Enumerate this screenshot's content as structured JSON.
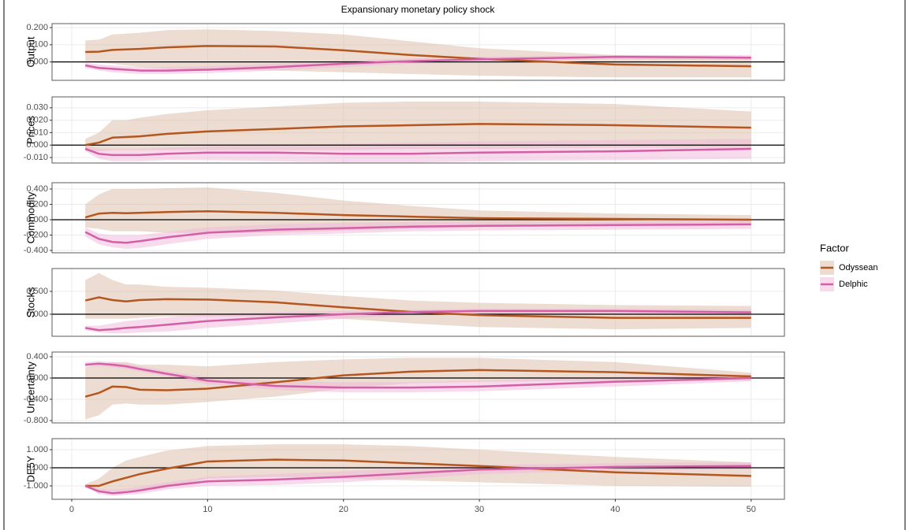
{
  "chart_data": [
    {
      "type": "line",
      "title": "Expansionary monetary policy shock",
      "y_label": "Output",
      "legend_title": "Factor",
      "legend_position": "right",
      "x": [
        1,
        2,
        3,
        4,
        5,
        7,
        10,
        15,
        20,
        25,
        30,
        40,
        50
      ],
      "ylim": [
        -0.107,
        0.223
      ],
      "yticks": [
        {
          "value": 0.2,
          "label": "0.200"
        },
        {
          "value": 0.1,
          "label": "0.100"
        },
        {
          "value": 0,
          "label": "0.000"
        }
      ],
      "series": [
        {
          "name": "Odyssean",
          "color": "#b5561e",
          "band_color": "#d9b9a3",
          "values": [
            0.058,
            0.06,
            0.07,
            0.073,
            0.076,
            0.085,
            0.093,
            0.09,
            0.068,
            0.04,
            0.018,
            -0.015,
            -0.025
          ],
          "upper": [
            0.125,
            0.13,
            0.16,
            0.165,
            0.17,
            0.185,
            0.19,
            0.18,
            0.16,
            0.12,
            0.08,
            0.04,
            0.03
          ],
          "lower": [
            0.0,
            -0.005,
            -0.01,
            -0.02,
            -0.03,
            -0.04,
            -0.045,
            -0.05,
            -0.06,
            -0.07,
            -0.08,
            -0.09,
            -0.09
          ]
        },
        {
          "name": "Delphic",
          "color": "#d45fa6",
          "band_color": "#f0b8dc",
          "values": [
            -0.02,
            -0.035,
            -0.04,
            -0.045,
            -0.05,
            -0.05,
            -0.045,
            -0.03,
            -0.01,
            0.005,
            0.015,
            0.03,
            0.025
          ],
          "upper": [
            -0.005,
            -0.015,
            -0.02,
            -0.025,
            -0.03,
            -0.03,
            -0.025,
            -0.01,
            0.01,
            0.02,
            0.03,
            0.04,
            0.04
          ],
          "lower": [
            -0.035,
            -0.05,
            -0.06,
            -0.065,
            -0.07,
            -0.07,
            -0.065,
            -0.05,
            -0.03,
            -0.01,
            0.0,
            0.015,
            0.01
          ]
        }
      ]
    },
    {
      "type": "line",
      "y_label": "Prices",
      "x": [
        1,
        2,
        3,
        4,
        5,
        7,
        10,
        15,
        20,
        25,
        30,
        40,
        50
      ],
      "ylim": [
        -0.0144,
        0.03875
      ],
      "yticks": [
        {
          "value": 0.03,
          "label": "0.030"
        },
        {
          "value": 0.02,
          "label": "0.020"
        },
        {
          "value": 0.01,
          "label": "0.010"
        },
        {
          "value": 0,
          "label": "0.000"
        },
        {
          "value": -0.01,
          "label": "-0.010"
        }
      ],
      "series": [
        {
          "color": "#b5561e",
          "band_color": "#d9b9a3",
          "values": [
            0,
            0.002,
            0.006,
            0.0065,
            0.007,
            0.009,
            0.011,
            0.013,
            0.015,
            0.016,
            0.017,
            0.016,
            0.014
          ],
          "upper": [
            0.005,
            0.01,
            0.02,
            0.02,
            0.022,
            0.025,
            0.028,
            0.031,
            0.034,
            0.035,
            0.035,
            0.033,
            0.027
          ],
          "lower": [
            -0.005,
            -0.005,
            -0.004,
            -0.004,
            -0.004,
            -0.004,
            -0.004,
            -0.004,
            -0.004,
            -0.003,
            -0.003,
            -0.002,
            -0.002
          ]
        },
        {
          "color": "#d45fa6",
          "band_color": "#f0b8dc",
          "values": [
            -0.003,
            -0.007,
            -0.008,
            -0.008,
            -0.008,
            -0.007,
            -0.006,
            -0.006,
            -0.007,
            -0.007,
            -0.006,
            -0.005,
            -0.003
          ],
          "upper": [
            0.0,
            -0.003,
            -0.003,
            -0.003,
            -0.003,
            -0.002,
            -0.001,
            0.0,
            0.001,
            0.002,
            0.003,
            0.004,
            0.005
          ],
          "lower": [
            -0.005,
            -0.011,
            -0.013,
            -0.013,
            -0.013,
            -0.012,
            -0.012,
            -0.013,
            -0.014,
            -0.014,
            -0.013,
            -0.012,
            -0.011
          ]
        }
      ]
    },
    {
      "type": "line",
      "y_label": "Commodity",
      "x": [
        1,
        2,
        3,
        4,
        5,
        7,
        10,
        15,
        20,
        25,
        30,
        40,
        50
      ],
      "ylim": [
        -0.431,
        0.482
      ],
      "yticks": [
        {
          "value": 0.4,
          "label": "0.400"
        },
        {
          "value": 0.2,
          "label": "0.200"
        },
        {
          "value": 0,
          "label": "0.000"
        },
        {
          "value": -0.2,
          "label": "-0.200"
        },
        {
          "value": -0.4,
          "label": "-0.400"
        }
      ],
      "series": [
        {
          "color": "#b5561e",
          "band_color": "#d9b9a3",
          "values": [
            0.03,
            0.08,
            0.09,
            0.085,
            0.09,
            0.1,
            0.11,
            0.09,
            0.06,
            0.04,
            0.02,
            0.01,
            0.0
          ],
          "upper": [
            0.2,
            0.33,
            0.4,
            0.4,
            0.4,
            0.41,
            0.42,
            0.35,
            0.25,
            0.18,
            0.12,
            0.08,
            0.06
          ],
          "lower": [
            -0.1,
            -0.12,
            -0.15,
            -0.15,
            -0.15,
            -0.17,
            -0.18,
            -0.17,
            -0.14,
            -0.12,
            -0.1,
            -0.08,
            -0.06
          ]
        },
        {
          "color": "#d45fa6",
          "band_color": "#f0b8dc",
          "values": [
            -0.16,
            -0.25,
            -0.29,
            -0.3,
            -0.28,
            -0.23,
            -0.17,
            -0.13,
            -0.11,
            -0.09,
            -0.08,
            -0.07,
            -0.06
          ],
          "upper": [
            -0.1,
            -0.18,
            -0.2,
            -0.2,
            -0.2,
            -0.16,
            -0.1,
            -0.06,
            -0.04,
            -0.03,
            -0.02,
            -0.02,
            -0.01
          ],
          "lower": [
            -0.22,
            -0.32,
            -0.36,
            -0.38,
            -0.37,
            -0.32,
            -0.25,
            -0.2,
            -0.18,
            -0.15,
            -0.14,
            -0.13,
            -0.12
          ]
        }
      ]
    },
    {
      "type": "line",
      "y_label": "Stocks",
      "x": [
        1,
        2,
        3,
        4,
        5,
        7,
        10,
        15,
        20,
        25,
        30,
        40,
        50
      ],
      "ylim": [
        -0.483,
        1.0
      ],
      "yticks": [
        {
          "value": 0.5,
          "label": "0.500"
        },
        {
          "value": 0,
          "label": "0.000"
        }
      ],
      "series": [
        {
          "color": "#b5561e",
          "band_color": "#d9b9a3",
          "values": [
            0.3,
            0.37,
            0.31,
            0.28,
            0.31,
            0.33,
            0.32,
            0.26,
            0.15,
            0.05,
            -0.02,
            -0.08,
            -0.08
          ],
          "upper": [
            0.75,
            0.9,
            0.75,
            0.65,
            0.65,
            0.6,
            0.58,
            0.52,
            0.4,
            0.3,
            0.25,
            0.2,
            0.18
          ],
          "lower": [
            -0.1,
            -0.1,
            -0.1,
            -0.1,
            -0.08,
            -0.05,
            -0.05,
            -0.05,
            -0.1,
            -0.2,
            -0.28,
            -0.33,
            -0.3
          ]
        },
        {
          "color": "#d45fa6",
          "band_color": "#f0b8dc",
          "values": [
            -0.3,
            -0.35,
            -0.33,
            -0.3,
            -0.28,
            -0.23,
            -0.15,
            -0.07,
            0.0,
            0.05,
            0.07,
            0.07,
            0.04
          ],
          "upper": [
            -0.25,
            -0.25,
            -0.2,
            -0.15,
            -0.12,
            -0.07,
            0.0,
            0.05,
            0.07,
            0.1,
            0.12,
            0.12,
            0.1
          ],
          "lower": [
            -0.35,
            -0.4,
            -0.42,
            -0.42,
            -0.4,
            -0.38,
            -0.3,
            -0.2,
            -0.1,
            -0.02,
            0.0,
            0.0,
            -0.03
          ]
        }
      ]
    },
    {
      "type": "line",
      "y_label": "Uncertainty",
      "x": [
        1,
        2,
        3,
        4,
        5,
        7,
        10,
        15,
        20,
        25,
        30,
        40,
        50
      ],
      "ylim": [
        -0.844,
        0.489
      ],
      "yticks": [
        {
          "value": 0.4,
          "label": "0.400"
        },
        {
          "value": 0,
          "label": "0.000"
        },
        {
          "value": -0.4,
          "label": "-0.400"
        },
        {
          "value": -0.8,
          "label": "-0.800"
        }
      ],
      "series": [
        {
          "color": "#b5561e",
          "band_color": "#d9b9a3",
          "values": [
            -0.35,
            -0.28,
            -0.16,
            -0.17,
            -0.22,
            -0.23,
            -0.2,
            -0.08,
            0.05,
            0.12,
            0.15,
            0.11,
            0.03
          ],
          "upper": [
            0.2,
            0.25,
            0.3,
            0.3,
            0.25,
            0.25,
            0.22,
            0.3,
            0.35,
            0.38,
            0.38,
            0.3,
            0.1
          ],
          "lower": [
            -0.78,
            -0.7,
            -0.5,
            -0.48,
            -0.5,
            -0.5,
            -0.45,
            -0.35,
            -0.2,
            -0.1,
            -0.07,
            -0.05,
            -0.05
          ]
        },
        {
          "color": "#d45fa6",
          "band_color": "#f0b8dc",
          "values": [
            0.25,
            0.27,
            0.25,
            0.22,
            0.17,
            0.08,
            -0.05,
            -0.15,
            -0.18,
            -0.18,
            -0.16,
            -0.07,
            0.0
          ],
          "upper": [
            0.3,
            0.32,
            0.3,
            0.27,
            0.22,
            0.13,
            0.02,
            -0.06,
            -0.08,
            -0.08,
            -0.05,
            0.02,
            0.06
          ],
          "lower": [
            0.2,
            0.22,
            0.2,
            0.17,
            0.12,
            0.03,
            -0.12,
            -0.22,
            -0.27,
            -0.27,
            -0.25,
            -0.16,
            -0.06
          ]
        }
      ]
    },
    {
      "type": "line",
      "y_label": "DE5Y",
      "x": [
        1,
        2,
        3,
        4,
        5,
        7,
        10,
        15,
        20,
        25,
        30,
        40,
        50
      ],
      "xlim": [
        -1.45,
        52.45
      ],
      "xticks": [
        0,
        10,
        20,
        30,
        40,
        50
      ],
      "ylim": [
        -1.739,
        1.609
      ],
      "yticks": [
        {
          "value": 1,
          "label": "1.000"
        },
        {
          "value": 0,
          "label": "0.000"
        },
        {
          "value": -1,
          "label": "-1.000"
        }
      ],
      "series": [
        {
          "color": "#b5561e",
          "band_color": "#d9b9a3",
          "values": [
            -1.0,
            -1.0,
            -0.75,
            -0.55,
            -0.35,
            -0.05,
            0.35,
            0.45,
            0.4,
            0.25,
            0.1,
            -0.25,
            -0.45
          ],
          "upper": [
            -0.9,
            -0.6,
            0.0,
            0.4,
            0.6,
            0.95,
            1.2,
            1.3,
            1.3,
            1.2,
            1.0,
            0.6,
            0.3
          ],
          "lower": [
            -1.1,
            -1.3,
            -1.3,
            -1.3,
            -1.3,
            -1.1,
            -0.6,
            -0.5,
            -0.6,
            -0.7,
            -0.8,
            -1.0,
            -1.05
          ]
        },
        {
          "color": "#d45fa6",
          "band_color": "#f0b8dc",
          "values": [
            -1.0,
            -1.3,
            -1.4,
            -1.35,
            -1.25,
            -1.0,
            -0.75,
            -0.65,
            -0.5,
            -0.3,
            -0.1,
            0.05,
            0.1
          ],
          "upper": [
            -0.95,
            -1.15,
            -1.2,
            -1.15,
            -1.05,
            -0.8,
            -0.5,
            -0.35,
            -0.2,
            0.0,
            0.15,
            0.25,
            0.3
          ],
          "lower": [
            -1.05,
            -1.45,
            -1.55,
            -1.5,
            -1.45,
            -1.2,
            -1.0,
            -0.95,
            -0.8,
            -0.6,
            -0.35,
            -0.15,
            -0.1
          ]
        }
      ]
    }
  ]
}
